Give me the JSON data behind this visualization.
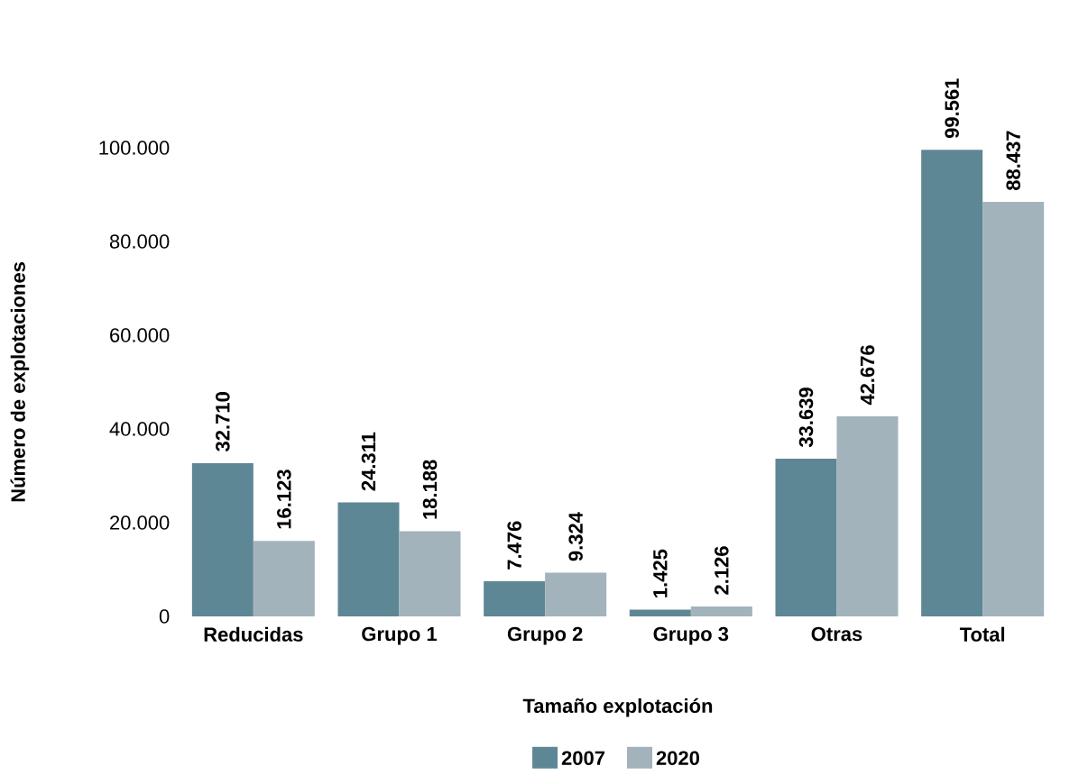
{
  "chart_data": {
    "type": "bar",
    "xlabel": "Tamaño explotación",
    "ylabel": "Número de explotaciones",
    "categories": [
      "Reducidas",
      "Grupo 1",
      "Grupo 2",
      "Grupo 3",
      "Otras",
      "Total"
    ],
    "series": [
      {
        "name": "2007",
        "color": "#5e8796",
        "values": [
          32710,
          24311,
          7476,
          1425,
          33639,
          99561
        ],
        "value_labels": [
          "32.710",
          "24.311",
          "7.476",
          "1.425",
          "33.639",
          "99.561"
        ]
      },
      {
        "name": "2020",
        "color": "#a3b3bb",
        "values": [
          16123,
          18188,
          9324,
          2126,
          42676,
          88437
        ],
        "value_labels": [
          "16.123",
          "18.188",
          "9.324",
          "2.126",
          "42.676",
          "88.437"
        ]
      }
    ],
    "ylim": [
      0,
      100000
    ],
    "yticks": [
      0,
      {
        "value": 20000,
        "label": "20.000"
      },
      {
        "value": 40000,
        "label": "40.000"
      },
      {
        "value": 60000,
        "label": "60.000"
      },
      {
        "value": 80000,
        "label": "80.000"
      },
      {
        "value": 100000,
        "label": "100.000"
      }
    ],
    "legend": "bottom"
  }
}
